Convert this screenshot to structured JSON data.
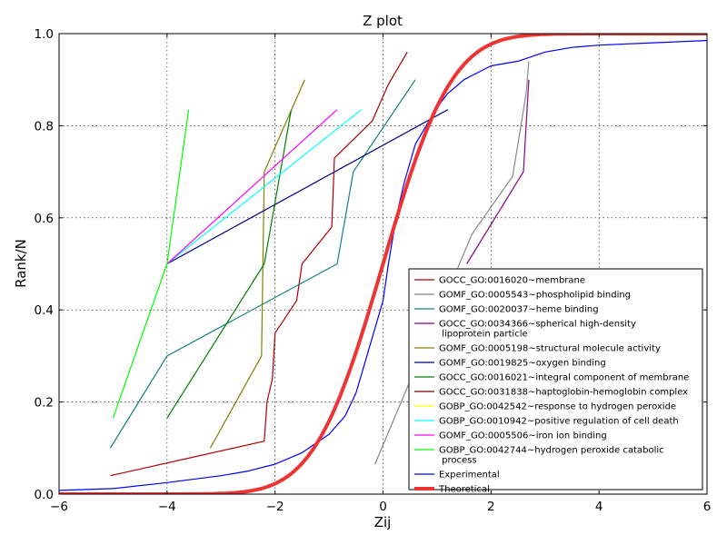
{
  "chart_data": {
    "type": "line",
    "title": "Z plot",
    "xlabel": "Zij",
    "ylabel": "Rank/N",
    "xlim": [
      -6,
      6
    ],
    "ylim": [
      0,
      1
    ],
    "x_ticks": [
      "−6",
      "−4",
      "−2",
      "0",
      "2",
      "4",
      "6"
    ],
    "y_ticks": [
      "0.0",
      "0.2",
      "0.4",
      "0.6",
      "0.8",
      "1.0"
    ],
    "grid": true,
    "legend_position": "lower-right",
    "series": [
      {
        "name": "GOCC_GO:0016020~membrane",
        "color": "#aa0000",
        "points": [
          [
            -5.05,
            0.04
          ],
          [
            -2.2,
            0.115
          ],
          [
            -2.15,
            0.2
          ],
          [
            -2.05,
            0.25
          ],
          [
            -2.0,
            0.35
          ],
          [
            -1.6,
            0.42
          ],
          [
            -1.5,
            0.5
          ],
          [
            -0.95,
            0.58
          ],
          [
            -0.9,
            0.73
          ],
          [
            -0.2,
            0.81
          ],
          [
            0.1,
            0.89
          ],
          [
            0.45,
            0.96
          ]
        ]
      },
      {
        "name": "GOMF_GO:0005543~phospholipid binding",
        "color": "#888888",
        "points": [
          [
            -0.15,
            0.065
          ],
          [
            1.65,
            0.565
          ],
          [
            2.4,
            0.69
          ],
          [
            2.65,
            0.87
          ],
          [
            2.7,
            0.94
          ]
        ]
      },
      {
        "name": "GOMF_GO:0020037~heme binding",
        "color": "#128080",
        "points": [
          [
            -5.05,
            0.1
          ],
          [
            -4.0,
            0.3
          ],
          [
            -0.85,
            0.5
          ],
          [
            -0.55,
            0.7
          ],
          [
            0.6,
            0.9
          ]
        ]
      },
      {
        "name": "GOCC_GO:0034366~spherical high-density lipoprotein particle",
        "color": "#880088",
        "points": [
          [
            1.55,
            0.5
          ],
          [
            2.6,
            0.7
          ],
          [
            2.7,
            0.9
          ]
        ]
      },
      {
        "name": "GOMF_GO:0005198~structural molecule activity",
        "color": "#808000",
        "points": [
          [
            -3.2,
            0.1
          ],
          [
            -2.25,
            0.3
          ],
          [
            -2.2,
            0.7
          ],
          [
            -1.45,
            0.9
          ]
        ]
      },
      {
        "name": "GOMF_GO:0019825~oxygen binding",
        "color": "#000080",
        "points": [
          [
            -4.0,
            0.5
          ],
          [
            1.2,
            0.835
          ]
        ]
      },
      {
        "name": "GOCC_GO:0016021~integral component of membrane",
        "color": "#008000",
        "points": [
          [
            -4.0,
            0.165
          ],
          [
            -2.2,
            0.5
          ],
          [
            -1.7,
            0.835
          ]
        ]
      },
      {
        "name": "GOCC_GO:0031838~haptoglobin-hemoglobin complex",
        "color": "#800000",
        "points": []
      },
      {
        "name": "GOBP_GO:0042542~response to hydrogen peroxide",
        "color": "#ffff00",
        "points": []
      },
      {
        "name": "GOBP_GO:0010942~positive regulation of cell death",
        "color": "#00ffff",
        "points": [
          [
            -4.0,
            0.5
          ],
          [
            -0.4,
            0.835
          ]
        ]
      },
      {
        "name": "GOMF_GO:0005506~iron ion binding",
        "color": "#ff00ff",
        "points": [
          [
            -4.0,
            0.5
          ],
          [
            -0.85,
            0.835
          ]
        ]
      },
      {
        "name": "GOBP_GO:0042744~hydrogen peroxide catabolic process",
        "color": "#00ff00",
        "points": [
          [
            -5.0,
            0.165
          ],
          [
            -4.0,
            0.5
          ],
          [
            -3.6,
            0.835
          ]
        ]
      },
      {
        "name": "Experimental",
        "color": "#0000ff",
        "points": [
          [
            -6.0,
            0.008
          ],
          [
            -5.0,
            0.012
          ],
          [
            -4.0,
            0.025
          ],
          [
            -3.0,
            0.04
          ],
          [
            -2.5,
            0.05
          ],
          [
            -2.0,
            0.065
          ],
          [
            -1.5,
            0.09
          ],
          [
            -1.0,
            0.13
          ],
          [
            -0.7,
            0.17
          ],
          [
            -0.5,
            0.22
          ],
          [
            -0.3,
            0.3
          ],
          [
            -0.1,
            0.38
          ],
          [
            0.0,
            0.42
          ],
          [
            0.1,
            0.5
          ],
          [
            0.2,
            0.57
          ],
          [
            0.3,
            0.63
          ],
          [
            0.4,
            0.68
          ],
          [
            0.5,
            0.72
          ],
          [
            0.6,
            0.76
          ],
          [
            0.8,
            0.8
          ],
          [
            1.0,
            0.84
          ],
          [
            1.2,
            0.87
          ],
          [
            1.5,
            0.9
          ],
          [
            2.0,
            0.93
          ],
          [
            2.5,
            0.94
          ],
          [
            3.0,
            0.96
          ],
          [
            3.5,
            0.97
          ],
          [
            4.0,
            0.975
          ],
          [
            5.0,
            0.98
          ],
          [
            6.0,
            0.985
          ]
        ]
      },
      {
        "name": "Theoretical",
        "color": "#ee3333",
        "cdf": true
      }
    ]
  }
}
